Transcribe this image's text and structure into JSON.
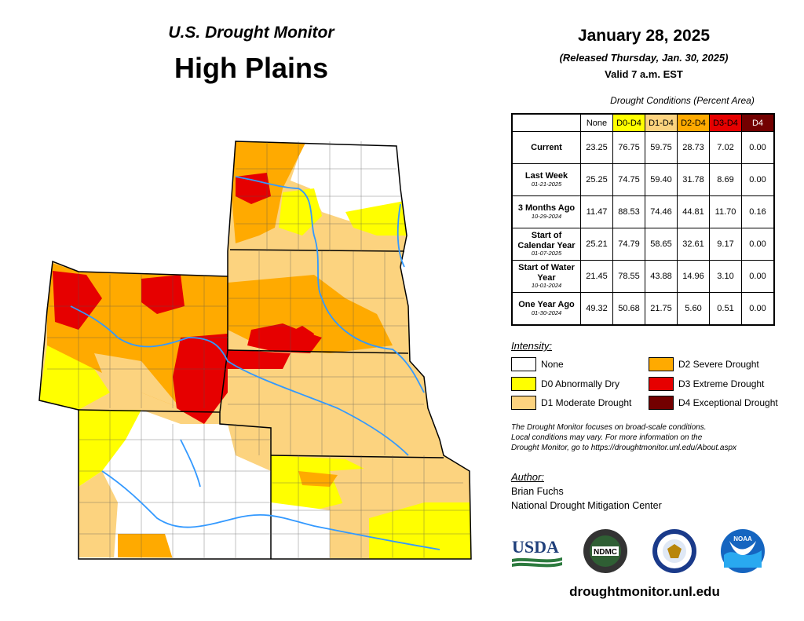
{
  "header": {
    "usdm_title": "U.S. Drought Monitor",
    "region": "High Plains",
    "date": "January 28, 2025",
    "released": "(Released Thursday, Jan. 30, 2025)",
    "valid": "Valid 7 a.m. EST"
  },
  "conditions": {
    "caption": "Drought Conditions (Percent Area)",
    "columns": [
      "None",
      "D0-D4",
      "D1-D4",
      "D2-D4",
      "D3-D4",
      "D4"
    ],
    "column_colors": [
      "#ffffff",
      "#ffff00",
      "#fcd37f",
      "#ffaa00",
      "#e60000",
      "#730000"
    ],
    "rows": [
      {
        "label": "Current",
        "date": "",
        "values": [
          "23.25",
          "76.75",
          "59.75",
          "28.73",
          "7.02",
          "0.00"
        ]
      },
      {
        "label": "Last Week",
        "date": "01-21-2025",
        "values": [
          "25.25",
          "74.75",
          "59.40",
          "31.78",
          "8.69",
          "0.00"
        ]
      },
      {
        "label": "3 Months Ago",
        "date": "10-29-2024",
        "values": [
          "11.47",
          "88.53",
          "74.46",
          "44.81",
          "11.70",
          "0.16"
        ]
      },
      {
        "label": "Start of Calendar Year",
        "date": "01-07-2025",
        "values": [
          "25.21",
          "74.79",
          "58.65",
          "32.61",
          "9.17",
          "0.00"
        ]
      },
      {
        "label": "Start of Water Year",
        "date": "10-01-2024",
        "values": [
          "21.45",
          "78.55",
          "43.88",
          "14.96",
          "3.10",
          "0.00"
        ]
      },
      {
        "label": "One Year Ago",
        "date": "01-30-2024",
        "values": [
          "49.32",
          "50.68",
          "21.75",
          "5.60",
          "0.51",
          "0.00"
        ]
      }
    ]
  },
  "legend": {
    "title": "Intensity:",
    "items": [
      {
        "label": "None",
        "color": "#ffffff"
      },
      {
        "label": "D0 Abnormally Dry",
        "color": "#ffff00"
      },
      {
        "label": "D1 Moderate Drought",
        "color": "#fcd37f"
      },
      {
        "label": "D2 Severe Drought",
        "color": "#ffaa00"
      },
      {
        "label": "D3 Extreme Drought",
        "color": "#e60000"
      },
      {
        "label": "D4 Exceptional Drought",
        "color": "#730000"
      }
    ]
  },
  "disclaimer": {
    "line1": "The Drought Monitor focuses on broad-scale conditions.",
    "line2": "Local conditions may vary. For more information on the",
    "line3": "Drought Monitor, go to https://droughtmonitor.unl.edu/About.aspx"
  },
  "author": {
    "title": "Author:",
    "name": "Brian Fuchs",
    "org": "National Drought Mitigation Center"
  },
  "logos": {
    "usda": "USDA",
    "ndmc": "NDMC",
    "noaa": "NOAA"
  },
  "website": "droughtmonitor.unl.edu",
  "map_colors": {
    "none": "#ffffff",
    "d0": "#ffff00",
    "d1": "#fcd37f",
    "d2": "#ffaa00",
    "d3": "#e60000",
    "river": "#3399ff"
  }
}
